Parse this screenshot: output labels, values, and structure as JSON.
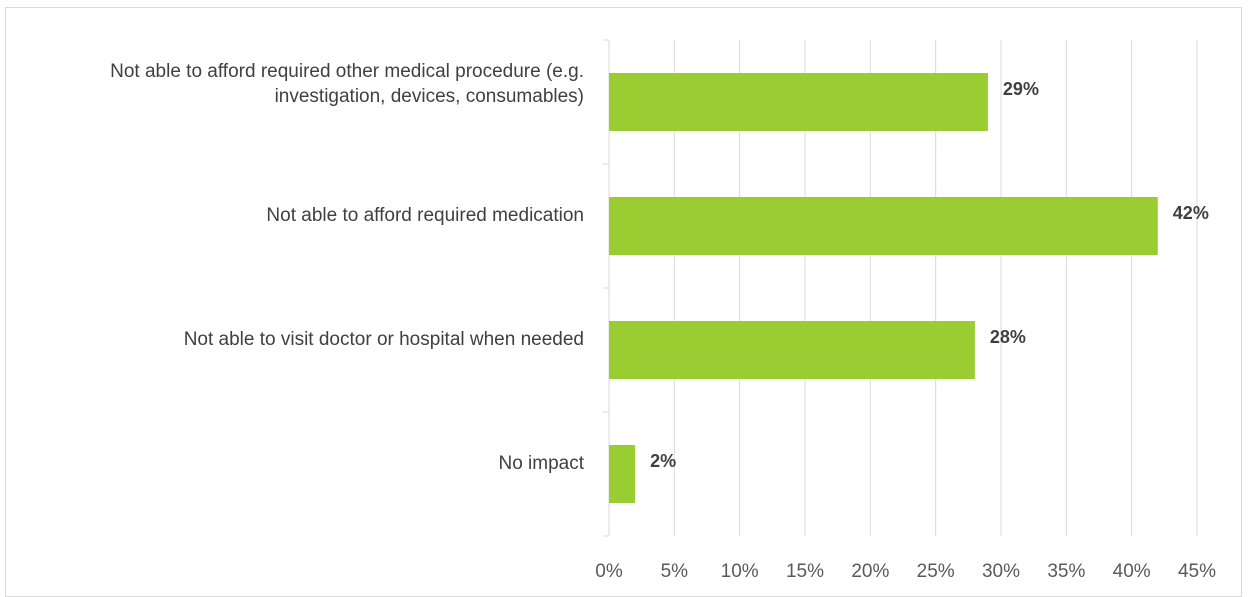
{
  "chart_data": {
    "type": "bar",
    "orientation": "horizontal",
    "categories": [
      "Not able to afford required other medical procedure (e.g. investigation, devices, consumables)",
      "Not able to afford required medication",
      "Not able to visit doctor or hospital when needed",
      "No impact"
    ],
    "category_lines": [
      [
        "Not able to afford required other medical procedure (e.g.",
        "investigation, devices, consumables)"
      ],
      [
        "Not able to afford required medication"
      ],
      [
        "Not able to visit doctor or hospital when needed"
      ],
      [
        "No impact"
      ]
    ],
    "values": [
      29,
      42,
      28,
      2
    ],
    "data_labels": [
      "29%",
      "42%",
      "28%",
      "2%"
    ],
    "xlim": [
      0,
      45
    ],
    "xticks": [
      0,
      5,
      10,
      15,
      20,
      25,
      30,
      35,
      40,
      45
    ],
    "xtick_labels": [
      "0%",
      "5%",
      "10%",
      "15%",
      "20%",
      "25%",
      "30%",
      "35%",
      "40%",
      "45%"
    ],
    "grid": true,
    "legend": "none",
    "bar_color": "#9ACD32",
    "title": "",
    "xlabel": "",
    "ylabel": ""
  }
}
